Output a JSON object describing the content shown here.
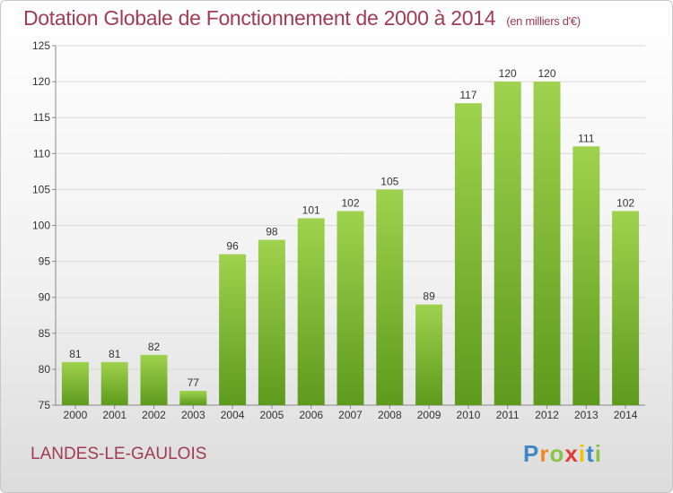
{
  "chart_data": {
    "type": "bar",
    "title": "Dotation Globale de Fonctionnement de 2000 à 2014",
    "unit_note": "(en milliers d'€)",
    "categories": [
      "2000",
      "2001",
      "2002",
      "2003",
      "2004",
      "2005",
      "2006",
      "2007",
      "2008",
      "2009",
      "2010",
      "2011",
      "2012",
      "2013",
      "2014"
    ],
    "values": [
      81,
      81,
      82,
      77,
      96,
      98,
      101,
      102,
      105,
      89,
      117,
      120,
      120,
      111,
      102
    ],
    "ylim": [
      75,
      125
    ],
    "yticks": [
      75,
      80,
      85,
      90,
      95,
      100,
      105,
      110,
      115,
      120,
      125
    ],
    "grid": true,
    "bar_color_top": "#9fd24e",
    "bar_color_bottom": "#5e9a1c"
  },
  "footer": {
    "commune": "LANDES-LE-GAULOIS"
  },
  "logo": {
    "letters": [
      "P",
      "r",
      "o",
      "x",
      "i",
      "t",
      "i"
    ],
    "colors": [
      "#3f88c5",
      "#f08a24",
      "#8bc34a",
      "#e53935",
      "#f2c200",
      "#3f88c5",
      "#8bc34a"
    ]
  },
  "colors": {
    "title": "#a23b54",
    "grid": "#d9d9d9"
  }
}
